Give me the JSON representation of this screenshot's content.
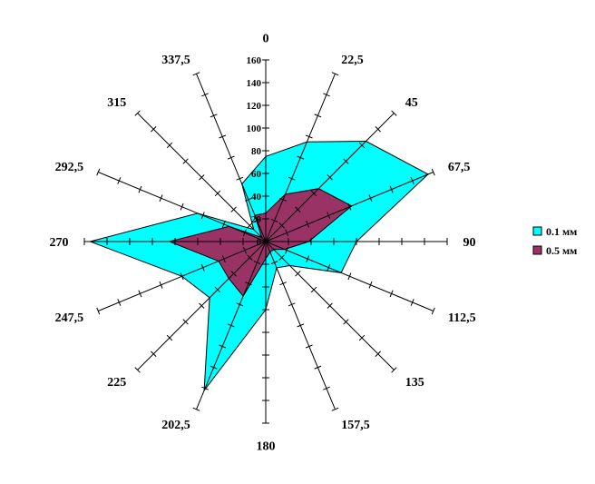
{
  "chart_data": {
    "type": "radar",
    "directions": [
      "0",
      "22,5",
      "45",
      "67,5",
      "90",
      "112,5",
      "135",
      "157,5",
      "180",
      "202,5",
      "225",
      "247,5",
      "270",
      "292,5",
      "315",
      "337,5"
    ],
    "radial_ticks": [
      "0",
      "20",
      "40",
      "60",
      "80",
      "100",
      "120",
      "140",
      "160"
    ],
    "rlim": [
      0,
      160
    ],
    "series": [
      {
        "name": "0.1 мм",
        "color": "#00FFFF",
        "values": [
          75,
          95,
          125,
          155,
          80,
          72,
          30,
          25,
          60,
          142,
          70,
          80,
          155,
          65,
          15,
          55
        ]
      },
      {
        "name": "0.5 мм",
        "color": "#993366",
        "values": [
          25,
          45,
          66,
          82,
          38,
          18,
          10,
          10,
          15,
          52,
          46,
          45,
          85,
          35,
          5,
          25
        ]
      }
    ],
    "legend_position": "right"
  }
}
